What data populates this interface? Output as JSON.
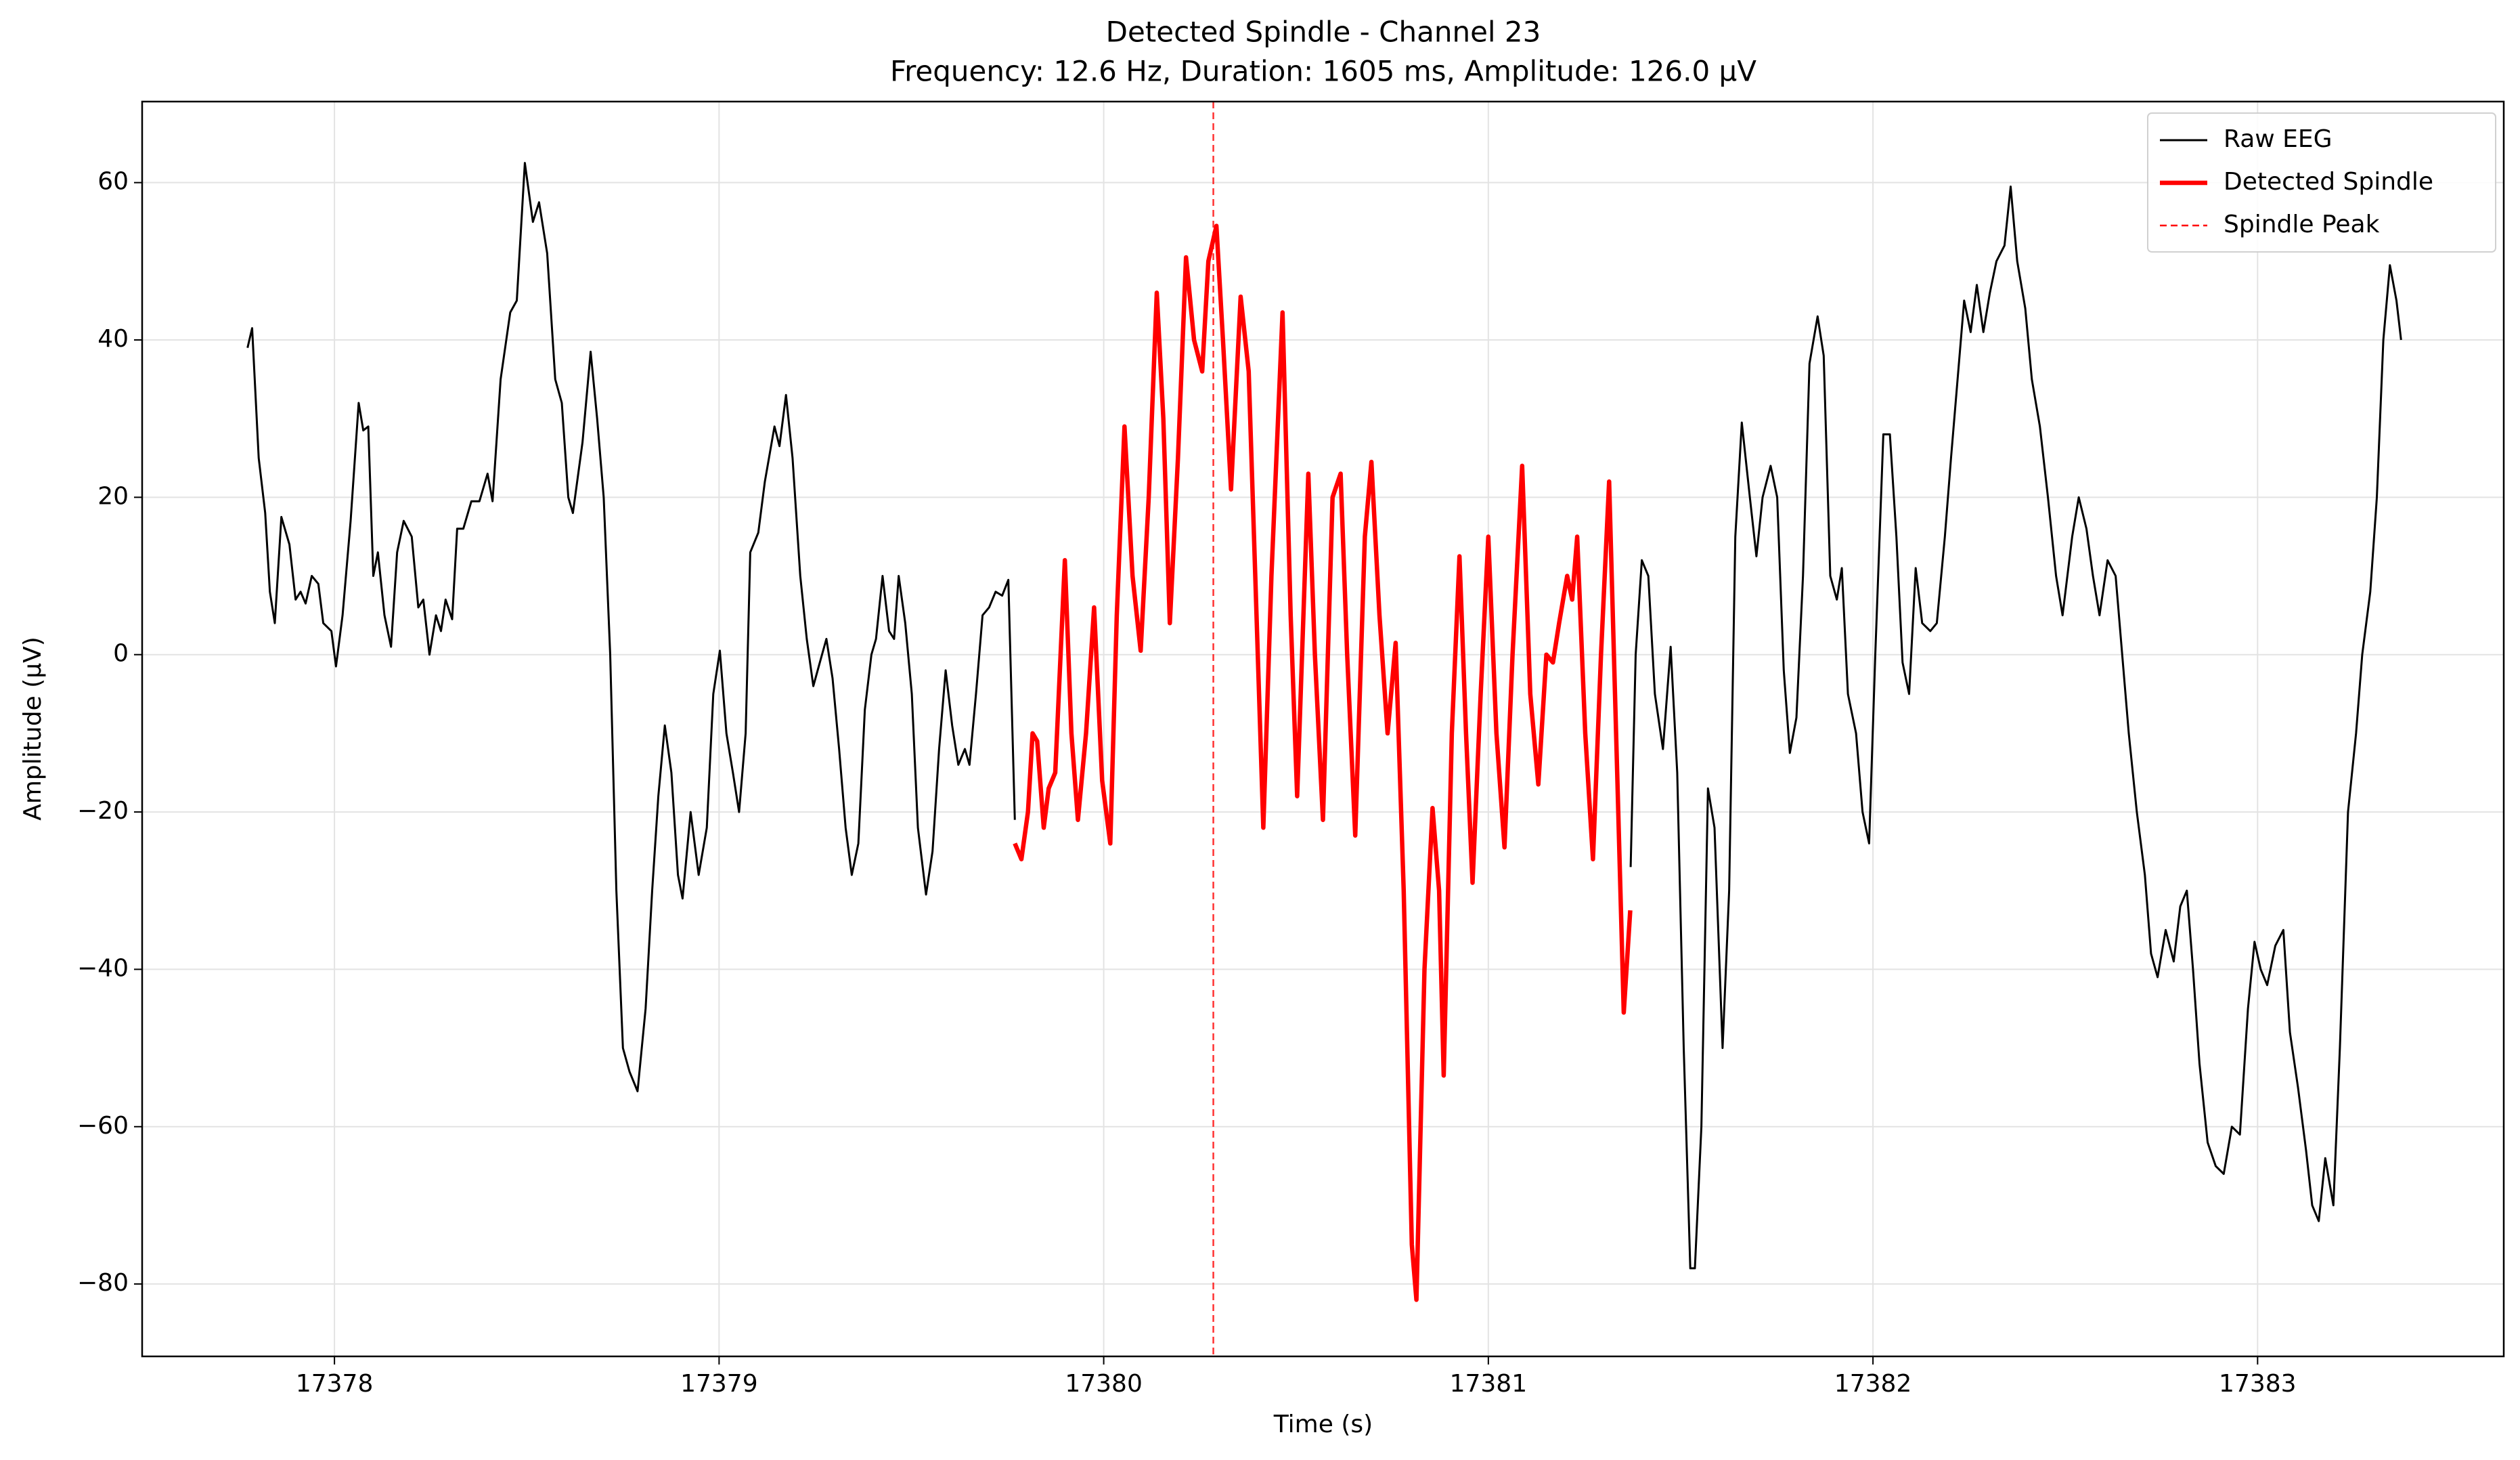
{
  "chart_data": {
    "type": "line",
    "title": "Detected Spindle - Channel 23",
    "subtitle": "Frequency: 12.6 Hz, Duration: 1605 ms, Amplitude: 126.0 µV",
    "xlabel": "Time (s)",
    "ylabel": "Amplitude (µV)",
    "xlim": [
      17377.5,
      17383.64
    ],
    "ylim": [
      -89.2,
      70.3
    ],
    "xticks": [
      17378,
      17379,
      17380,
      17381,
      17382,
      17383
    ],
    "yticks": [
      {
        "value": -80,
        "label": "−80"
      },
      {
        "value": -60,
        "label": "−60"
      },
      {
        "value": -40,
        "label": "−40"
      },
      {
        "value": -20,
        "label": "−20"
      },
      0,
      20,
      40,
      60
    ],
    "grid": true,
    "legend": "upper right",
    "series": [
      {
        "name": "Raw EEG",
        "color": "#000000",
        "style": "solid",
        "x": [
          17377.774,
          17377.786,
          17377.803,
          17377.82,
          17377.832,
          17377.845,
          17377.862,
          17377.883,
          17377.899,
          17377.912,
          17377.925,
          17377.941,
          17377.958,
          17377.971,
          17377.992,
          17378.004,
          17378.021,
          17378.042,
          17378.063,
          17378.075,
          17378.088,
          17378.101,
          17378.113,
          17378.13,
          17378.147,
          17378.163,
          17378.18,
          17378.201,
          17378.218,
          17378.231,
          17378.247,
          17378.264,
          17378.277,
          17378.289,
          17378.306,
          17378.319,
          17378.335,
          17378.356,
          17378.377,
          17378.398,
          17378.411,
          17378.432,
          17378.457,
          17378.474,
          17378.495,
          17378.516,
          17378.532,
          17378.553,
          17378.574,
          17378.591,
          17378.608,
          17378.62,
          17378.645,
          17378.666,
          17378.683,
          17378.7,
          17378.717,
          17378.733,
          17378.75,
          17378.767,
          17378.788,
          17378.809,
          17378.826,
          17378.842,
          17378.859,
          17378.876,
          17378.893,
          17378.905,
          17378.926,
          17378.947,
          17378.968,
          17378.985,
          17379.002,
          17379.019,
          17379.036,
          17379.052,
          17379.069,
          17379.081,
          17379.102,
          17379.119,
          17379.144,
          17379.157,
          17379.174,
          17379.191,
          17379.211,
          17379.228,
          17379.245,
          17379.262,
          17379.279,
          17379.295,
          17379.312,
          17379.329,
          17379.345,
          17379.362,
          17379.379,
          17379.396,
          17379.408,
          17379.425,
          17379.442,
          17379.455,
          17379.467,
          17379.484,
          17379.501,
          17379.517,
          17379.538,
          17379.555,
          17379.572,
          17379.589,
          17379.606,
          17379.622,
          17379.639,
          17379.651,
          17379.668,
          17379.685,
          17379.702,
          17379.719,
          17379.736,
          17379.752,
          17379.769,
          17380.5,
          17381.37,
          17381.383,
          17381.399,
          17381.416,
          17381.433,
          17381.454,
          17381.474,
          17381.491,
          17381.508,
          17381.525,
          17381.537,
          17381.554,
          17381.571,
          17381.588,
          17381.609,
          17381.626,
          17381.642,
          17381.659,
          17381.68,
          17381.697,
          17381.713,
          17381.734,
          17381.751,
          17381.768,
          17381.784,
          17381.801,
          17381.818,
          17381.835,
          17381.856,
          17381.872,
          17381.889,
          17381.906,
          17381.919,
          17381.935,
          17381.956,
          17381.973,
          17381.99,
          17382.006,
          17382.027,
          17382.044,
          17382.061,
          17382.077,
          17382.094,
          17382.111,
          17382.128,
          17382.149,
          17382.166,
          17382.187,
          17382.203,
          17382.22,
          17382.237,
          17382.254,
          17382.27,
          17382.287,
          17382.304,
          17382.321,
          17382.342,
          17382.358,
          17382.375,
          17382.396,
          17382.413,
          17382.434,
          17382.455,
          17382.476,
          17382.493,
          17382.518,
          17382.535,
          17382.555,
          17382.572,
          17382.589,
          17382.61,
          17382.631,
          17382.648,
          17382.665,
          17382.686,
          17382.707,
          17382.723,
          17382.74,
          17382.761,
          17382.782,
          17382.799,
          17382.816,
          17382.832,
          17382.849,
          17382.87,
          17382.891,
          17382.912,
          17382.933,
          17382.954,
          17382.975,
          17382.992,
          17383.008,
          17383.025,
          17383.046,
          17383.067,
          17383.084,
          17383.105,
          17383.126,
          17383.142,
          17383.159,
          17383.176,
          17383.197,
          17383.214,
          17383.235,
          17383.256,
          17383.272,
          17383.293,
          17383.31,
          17383.327,
          17383.344,
          17383.361,
          17383.373
        ],
        "values": [
          39,
          41.5,
          25,
          18,
          8,
          4,
          17.5,
          14,
          7,
          8,
          6.5,
          10,
          9,
          4,
          3,
          -1.5,
          5,
          17,
          32,
          28.5,
          29,
          10,
          13,
          5,
          1,
          13,
          17,
          15,
          6,
          7,
          0,
          5,
          3,
          7,
          4.5,
          16,
          16,
          19.5,
          19.5,
          23,
          19.5,
          35,
          43.5,
          45,
          62.5,
          55,
          57.5,
          51,
          35,
          32,
          20,
          18,
          27,
          38.5,
          30,
          20,
          0,
          -30,
          -50,
          -53,
          -55.5,
          -45,
          -30,
          -18,
          -9,
          -15,
          -28,
          -31,
          -20,
          -28,
          -22,
          -5,
          0.5,
          -10,
          -15,
          -20,
          -10,
          13,
          15.5,
          22,
          29,
          26.5,
          33,
          25,
          10,
          2,
          -4,
          -1,
          2,
          -3,
          -12,
          -22,
          -28,
          -24,
          -7,
          0,
          2,
          10,
          3,
          2,
          10,
          4,
          -5,
          -22,
          -30.5,
          -25,
          -12,
          -2,
          -9,
          -14,
          -12,
          -14,
          -5,
          5,
          6,
          8,
          7.5,
          9.5,
          -21,
          null,
          -27,
          0,
          12,
          10,
          -5,
          -12,
          1,
          -15,
          -50,
          -78,
          -78,
          -60,
          -17,
          -22,
          -50,
          -30,
          15,
          29.5,
          20,
          12.5,
          20,
          24,
          20,
          -2,
          -12.5,
          -8,
          10,
          37,
          43,
          38,
          10,
          7,
          11,
          -5,
          -10,
          -20,
          -24,
          0,
          28,
          28,
          15,
          -1,
          -5,
          11,
          4,
          3,
          4,
          15,
          25,
          35,
          45,
          41,
          47,
          41,
          46,
          50,
          52,
          59.5,
          50,
          44,
          35,
          29,
          20,
          10,
          5,
          15,
          20,
          16,
          10,
          5,
          12,
          10,
          0,
          -10,
          -20,
          -28,
          -38,
          -41,
          -35,
          -39,
          -32,
          -30,
          -40,
          -52,
          -62,
          -65,
          -66,
          -60,
          -61,
          -45,
          -36.5,
          -40,
          -42,
          -37,
          -35,
          -48,
          -55,
          -63,
          -70,
          -72,
          -64,
          -70,
          -50,
          -20,
          -10,
          0,
          8,
          20,
          40,
          49.5,
          45,
          40
        ]
      },
      {
        "name": "Detected Spindle",
        "color": "#ff0000",
        "style": "solid",
        "x": [
          17379.769,
          17379.786,
          17379.803,
          17379.815,
          17379.827,
          17379.844,
          17379.857,
          17379.874,
          17379.899,
          17379.916,
          17379.933,
          17379.954,
          17379.975,
          17379.996,
          17380.017,
          17380.034,
          17380.054,
          17380.075,
          17380.096,
          17380.117,
          17380.138,
          17380.155,
          17380.172,
          17380.193,
          17380.214,
          17380.235,
          17380.256,
          17380.272,
          17380.293,
          17380.31,
          17380.331,
          17380.356,
          17380.377,
          17380.394,
          17380.415,
          17380.436,
          17380.465,
          17380.486,
          17380.503,
          17380.532,
          17380.549,
          17380.57,
          17380.595,
          17380.616,
          17380.633,
          17380.654,
          17380.679,
          17380.696,
          17380.717,
          17380.738,
          17380.759,
          17380.78,
          17380.801,
          17380.813,
          17380.834,
          17380.855,
          17380.872,
          17380.884,
          17380.905,
          17380.925,
          17380.942,
          17380.959,
          17380.98,
          17381.0,
          17381.021,
          17381.042,
          17381.063,
          17381.088,
          17381.109,
          17381.13,
          17381.151,
          17381.168,
          17381.184,
          17381.205,
          17381.218,
          17381.231,
          17381.252,
          17381.272,
          17381.293,
          17381.314,
          17381.335,
          17381.352,
          17381.369
        ],
        "values": [
          -24,
          -26,
          -20,
          -10,
          -11,
          -22,
          -17,
          -15,
          12,
          -10,
          -21,
          -10,
          6,
          -16,
          -24,
          5,
          29,
          10,
          0.5,
          20,
          46,
          30,
          4,
          25,
          50.5,
          40,
          36,
          50,
          54.5,
          40,
          21,
          45.5,
          36,
          10,
          -22,
          10,
          43.5,
          5,
          -18,
          23,
          0,
          -21,
          20,
          23,
          0,
          -23,
          15,
          24.5,
          5,
          -10,
          1.5,
          -30,
          -75,
          -82,
          -40,
          -19.5,
          -30,
          -53.5,
          -10,
          12.5,
          -10,
          -29,
          -5,
          15,
          -10,
          -24.5,
          0,
          24,
          -5,
          -16.5,
          0,
          -1,
          4,
          10,
          7,
          15,
          -10,
          -26,
          0,
          22,
          -15,
          -45.5,
          -32.5
        ]
      }
    ],
    "peak_line": {
      "name": "Spindle Peak",
      "x": 17380.285,
      "color": "#ff0000",
      "style": "dashed"
    }
  }
}
